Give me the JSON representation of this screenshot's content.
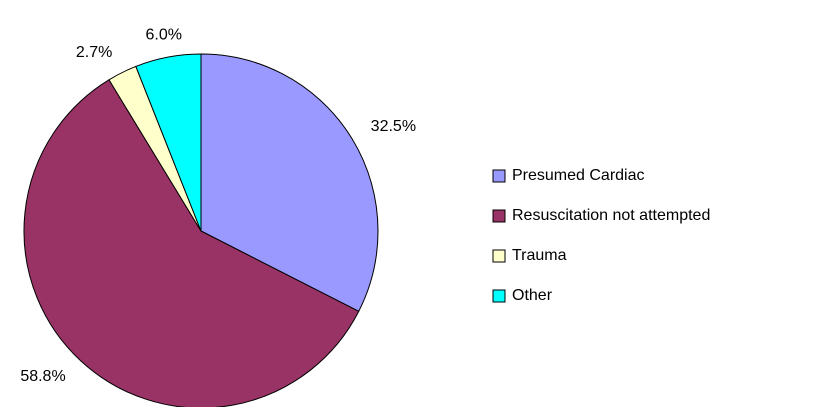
{
  "chart_data": {
    "type": "pie",
    "categories": [
      "Presumed Cardiac",
      "Resuscitation not attempted",
      "Trauma",
      "Other"
    ],
    "values": [
      32.5,
      58.8,
      2.7,
      6.0
    ],
    "value_labels": [
      "32.5%",
      "58.8%",
      "2.7%",
      "6.0%"
    ],
    "colors": [
      "#9999ff",
      "#993366",
      "#ffffcc",
      "#00ffff"
    ],
    "legend": "right"
  }
}
